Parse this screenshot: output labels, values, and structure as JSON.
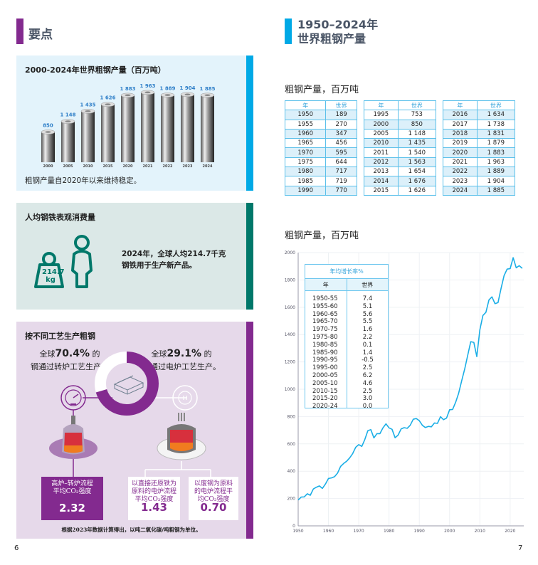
{
  "left_page": {
    "title": "要点",
    "page_number": "6",
    "production_panel": {
      "title": "2000-2024年世界粗钢产量（百万吨）",
      "caption": "粗钢产量自2020年以来维持稳定。",
      "chart_data": {
        "type": "bar",
        "categories": [
          "2000",
          "2005",
          "2010",
          "2015",
          "2020",
          "2021",
          "2022",
          "2023",
          "2024"
        ],
        "values": [
          850,
          1148,
          1435,
          1626,
          1883,
          1963,
          1889,
          1904,
          1885
        ],
        "labels": [
          "850",
          "1 148",
          "1 435",
          "1 626",
          "1 883",
          "1 963",
          "1 889",
          "1 904",
          "1 885"
        ]
      }
    },
    "consumption_panel": {
      "title": "人均钢铁表观消费量",
      "weight_label_1": "214.7",
      "weight_label_2": "kg",
      "text_line1": "2024年，全球人均214.7千克",
      "text_line2": "钢铁用于生产新产品。"
    },
    "process_panel": {
      "title": "按不同工艺生产粗钢",
      "bof_line1_pre": "全球",
      "bof_pct": "70.4%",
      "bof_line1_post": " 的",
      "bof_line2": "钢通过转炉工艺生产。",
      "eaf_line1_pre": "全球",
      "eaf_pct": "29.1%",
      "eaf_line1_post": " 的",
      "eaf_line2": "钢通过电炉工艺生产。",
      "share": {
        "bof": 70.4,
        "eaf": 29.1
      },
      "boxes": [
        {
          "line1": "高炉–转炉流程",
          "line2": "平均CO₂强度",
          "value": "2.32"
        },
        {
          "line1": "以直接还原铁为",
          "line2": "原料的电炉流程",
          "line3": "平均CO₂强度",
          "value": "1.43"
        },
        {
          "line1": "以废钢为原料",
          "line2": "的电炉流程平",
          "line3": "均CO₂强度",
          "value": "0.70"
        }
      ],
      "footnote": "根据2023年数据计算得出，以吨二氧化碳/吨粗钢为单位。"
    },
    "colors": {
      "blue": "#00a9e6",
      "green": "#00786a",
      "purple": "#832a8f"
    }
  },
  "right_page": {
    "title_line1": "1950–2024年",
    "title_line2": "世界粗钢产量",
    "page_number": "7",
    "table_label": "粗钢产量，百万吨",
    "table_headers": [
      "年",
      "世界"
    ],
    "tables": [
      [
        [
          "1950",
          "189"
        ],
        [
          "1955",
          "270"
        ],
        [
          "1960",
          "347"
        ],
        [
          "1965",
          "456"
        ],
        [
          "1970",
          "595"
        ],
        [
          "1975",
          "644"
        ],
        [
          "1980",
          "717"
        ],
        [
          "1985",
          "719"
        ],
        [
          "1990",
          "770"
        ]
      ],
      [
        [
          "1995",
          "753"
        ],
        [
          "2000",
          "850"
        ],
        [
          "2005",
          "1 148"
        ],
        [
          "2010",
          "1 435"
        ],
        [
          "2011",
          "1 540"
        ],
        [
          "2012",
          "1 563"
        ],
        [
          "2013",
          "1 654"
        ],
        [
          "2014",
          "1 676"
        ],
        [
          "2015",
          "1 626"
        ]
      ],
      [
        [
          "2016",
          "1 634"
        ],
        [
          "2017",
          "1 738"
        ],
        [
          "2018",
          "1 831"
        ],
        [
          "2019",
          "1 879"
        ],
        [
          "2020",
          "1 883"
        ],
        [
          "2021",
          "1 963"
        ],
        [
          "2022",
          "1 889"
        ],
        [
          "2023",
          "1 904"
        ],
        [
          "2024",
          "1 885"
        ]
      ]
    ],
    "chart_label": "粗钢产量，百万吨",
    "inset": {
      "title": "年均增长率%",
      "headers": [
        "年",
        "世界"
      ],
      "rows": [
        [
          "1950-55",
          "7.4"
        ],
        [
          "1955-60",
          "5.1"
        ],
        [
          "1960-65",
          "5.6"
        ],
        [
          "1965-70",
          "5.5"
        ],
        [
          "1970-75",
          "1.6"
        ],
        [
          "1975-80",
          "2.2"
        ],
        [
          "1980-85",
          "0.1"
        ],
        [
          "1985-90",
          "1.4"
        ],
        [
          "1990-95",
          "-0.5"
        ],
        [
          "1995-00",
          "2.5"
        ],
        [
          "2000-05",
          "6.2"
        ],
        [
          "2005-10",
          "4.6"
        ],
        [
          "2010-15",
          "2.5"
        ],
        [
          "2015-20",
          "3.0"
        ],
        [
          "2020-24",
          "0.0"
        ]
      ]
    },
    "chart_data": {
      "type": "line",
      "xlim": [
        1950,
        2024
      ],
      "ylim": [
        0,
        2000
      ],
      "grid": true,
      "color": "#1aaee6",
      "xticks": [
        "1950",
        "1960",
        "1970",
        "1980",
        "1990",
        "2000",
        "2010",
        "2020"
      ],
      "yticks": [
        "0",
        "200",
        "400",
        "600",
        "800",
        "1000",
        "1200",
        "1400",
        "1600",
        "1800",
        "2000"
      ],
      "x": [
        1950,
        1951,
        1952,
        1953,
        1954,
        1955,
        1956,
        1957,
        1958,
        1959,
        1960,
        1961,
        1962,
        1963,
        1964,
        1965,
        1966,
        1967,
        1968,
        1969,
        1970,
        1971,
        1972,
        1973,
        1974,
        1975,
        1976,
        1977,
        1978,
        1979,
        1980,
        1981,
        1982,
        1983,
        1984,
        1985,
        1986,
        1987,
        1988,
        1989,
        1990,
        1991,
        1992,
        1993,
        1994,
        1995,
        1996,
        1997,
        1998,
        1999,
        2000,
        2001,
        2002,
        2003,
        2004,
        2005,
        2006,
        2007,
        2008,
        2009,
        2010,
        2011,
        2012,
        2013,
        2014,
        2015,
        2016,
        2017,
        2018,
        2019,
        2020,
        2021,
        2022,
        2023,
        2024
      ],
      "y": [
        189,
        211,
        212,
        235,
        224,
        270,
        283,
        292,
        274,
        306,
        347,
        351,
        360,
        386,
        435,
        456,
        473,
        497,
        529,
        575,
        595,
        582,
        631,
        697,
        704,
        644,
        675,
        675,
        717,
        747,
        717,
        707,
        645,
        664,
        710,
        719,
        714,
        736,
        780,
        786,
        770,
        736,
        720,
        728,
        725,
        753,
        750,
        799,
        777,
        789,
        850,
        852,
        905,
        971,
        1063,
        1148,
        1250,
        1348,
        1343,
        1239,
        1435,
        1540,
        1563,
        1654,
        1676,
        1626,
        1634,
        1738,
        1831,
        1879,
        1883,
        1963,
        1889,
        1904,
        1885
      ]
    }
  }
}
